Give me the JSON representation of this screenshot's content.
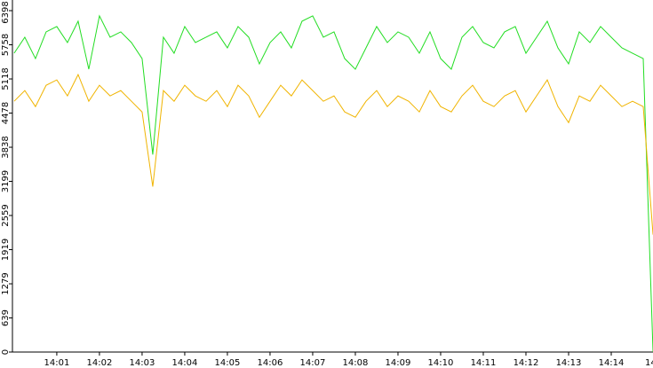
{
  "chart_data": {
    "type": "line",
    "x": [
      0,
      0.25,
      0.5,
      0.75,
      1,
      1.25,
      1.5,
      1.75,
      2,
      2.25,
      2.5,
      2.75,
      3,
      3.25,
      3.5,
      3.75,
      4,
      4.25,
      4.5,
      4.75,
      5,
      5.25,
      5.5,
      5.75,
      6,
      6.25,
      6.5,
      6.75,
      7,
      7.25,
      7.5,
      7.75,
      8,
      8.25,
      8.5,
      8.75,
      9,
      9.25,
      9.5,
      9.75,
      10,
      10.25,
      10.5,
      10.75,
      11,
      11.25,
      11.5,
      11.75,
      12,
      12.25,
      12.5,
      12.75,
      13,
      13.25,
      13.5,
      13.75,
      14,
      14.25,
      14.5,
      14.75,
      14.98
    ],
    "series": [
      {
        "color": "#22dd22",
        "values": [
          5600,
          5900,
          5500,
          6000,
          6100,
          5800,
          6200,
          5300,
          6300,
          5900,
          6000,
          5800,
          5500,
          3700,
          5900,
          5600,
          6100,
          5800,
          5900,
          6000,
          5700,
          6100,
          5900,
          5400,
          5800,
          6000,
          5700,
          6200,
          6300,
          5900,
          6000,
          5500,
          5300,
          5700,
          6100,
          5800,
          6000,
          5900,
          5600,
          6000,
          5500,
          5300,
          5900,
          6100,
          5800,
          5700,
          6000,
          6100,
          5600,
          5900,
          6200,
          5700,
          5400,
          6000,
          5800,
          6100,
          5900,
          5700,
          5600,
          5500,
          0
        ]
      },
      {
        "color": "#f0b400",
        "values": [
          4700,
          4900,
          4600,
          5000,
          5100,
          4800,
          5200,
          4700,
          5000,
          4800,
          4900,
          4700,
          4500,
          3100,
          4900,
          4700,
          5000,
          4800,
          4700,
          4900,
          4600,
          5000,
          4800,
          4400,
          4700,
          5000,
          4800,
          5100,
          4900,
          4700,
          4800,
          4500,
          4400,
          4700,
          4900,
          4600,
          4800,
          4700,
          4500,
          4900,
          4600,
          4500,
          4800,
          5000,
          4700,
          4600,
          4800,
          4900,
          4500,
          4800,
          5100,
          4600,
          4300,
          4800,
          4700,
          5000,
          4800,
          4600,
          4700,
          4600,
          2200
        ]
      }
    ],
    "xlim": [
      -0.04,
      15
    ],
    "xticks": [
      {
        "value": 1,
        "label": "14:01"
      },
      {
        "value": 2,
        "label": "14:02"
      },
      {
        "value": 3,
        "label": "14:03"
      },
      {
        "value": 4,
        "label": "14:04"
      },
      {
        "value": 5,
        "label": "14:05"
      },
      {
        "value": 6,
        "label": "14:06"
      },
      {
        "value": 7,
        "label": "14:07"
      },
      {
        "value": 8,
        "label": "14:08"
      },
      {
        "value": 9,
        "label": "14:09"
      },
      {
        "value": 10,
        "label": "14:10"
      },
      {
        "value": 11,
        "label": "14:11"
      },
      {
        "value": 12,
        "label": "14:12"
      },
      {
        "value": 13,
        "label": "14:13"
      },
      {
        "value": 14,
        "label": "14:14"
      },
      {
        "value": 15,
        "label": "14"
      }
    ],
    "ylim": [
      0,
      6398
    ],
    "yticks": [
      0,
      639,
      1279,
      1919,
      2559,
      3199,
      3838,
      4478,
      5118,
      5758,
      6398
    ]
  }
}
